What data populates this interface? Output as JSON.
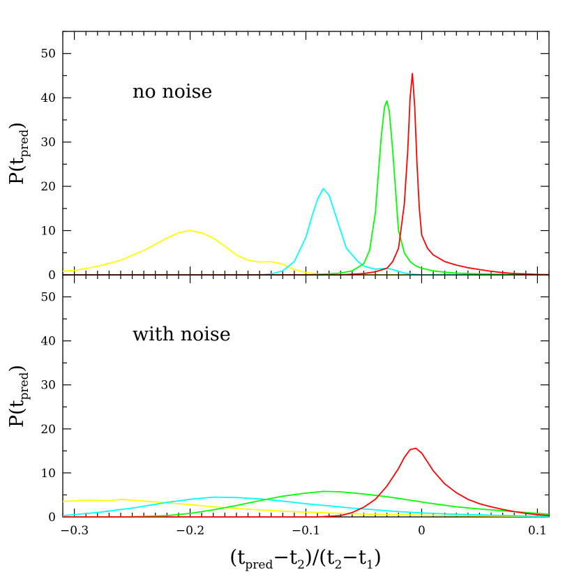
{
  "chart_data": [
    {
      "type": "line",
      "panel": "top",
      "annotation": "no noise",
      "ylabel": "P(t_pred)",
      "xlim": [
        -0.31,
        0.11
      ],
      "ylim": [
        0,
        55
      ],
      "xticks": [
        -0.3,
        -0.2,
        -0.1,
        0,
        0.1
      ],
      "yticks": [
        0,
        10,
        20,
        30,
        40,
        50
      ],
      "grid": false,
      "series": [
        {
          "color": "#ffff00",
          "x": [
            -0.31,
            -0.3,
            -0.28,
            -0.26,
            -0.24,
            -0.22,
            -0.21,
            -0.2,
            -0.19,
            -0.18,
            -0.17,
            -0.16,
            -0.15,
            -0.14,
            -0.13,
            -0.12,
            -0.11,
            -0.1,
            -0.09,
            -0.07,
            0.11
          ],
          "y": [
            0.8,
            1,
            1.9,
            3.3,
            5.5,
            8.3,
            9.5,
            10,
            9.5,
            8.3,
            6.5,
            4.5,
            3.3,
            2.9,
            3,
            2.4,
            1.2,
            0.5,
            0.2,
            0,
            0
          ]
        },
        {
          "color": "#00ffff",
          "x": [
            -0.31,
            -0.14,
            -0.13,
            -0.12,
            -0.11,
            -0.1,
            -0.095,
            -0.09,
            -0.085,
            -0.08,
            -0.075,
            -0.07,
            -0.065,
            -0.06,
            -0.055,
            -0.05,
            -0.045,
            -0.04,
            -0.035,
            -0.03,
            -0.025,
            -0.02,
            -0.015,
            -0.01,
            0,
            0.11
          ],
          "y": [
            0,
            0,
            0.2,
            0.9,
            3,
            8.5,
            13,
            17,
            19.5,
            18,
            14,
            10,
            6,
            4.5,
            3,
            2,
            1.6,
            1.3,
            1.4,
            1.5,
            1.2,
            0.8,
            0.4,
            0.2,
            0,
            0
          ]
        },
        {
          "color": "#00ff00",
          "x": [
            -0.31,
            -0.1,
            -0.08,
            -0.07,
            -0.06,
            -0.05,
            -0.045,
            -0.04,
            -0.035,
            -0.032,
            -0.03,
            -0.028,
            -0.025,
            -0.02,
            -0.015,
            -0.01,
            -0.005,
            0,
            0.01,
            0.02,
            0.03,
            0.05,
            0.07,
            0.09,
            0.11
          ],
          "y": [
            0,
            0,
            0.2,
            0.4,
            0.9,
            2.5,
            5.5,
            14,
            31,
            38,
            39.3,
            37,
            28,
            10,
            5,
            3,
            2,
            1.5,
            0.9,
            0.6,
            0.4,
            0.2,
            0.1,
            0,
            0
          ]
        },
        {
          "color": "#ff0000",
          "x": [
            -0.31,
            -0.07,
            -0.05,
            -0.04,
            -0.03,
            -0.025,
            -0.02,
            -0.015,
            -0.012,
            -0.01,
            -0.008,
            -0.006,
            -0.004,
            -0.002,
            0,
            0.005,
            0.01,
            0.02,
            0.03,
            0.04,
            0.05,
            0.06,
            0.07,
            0.08,
            0.09,
            0.1,
            0.11
          ],
          "y": [
            0,
            0,
            0.3,
            0.7,
            1.5,
            3,
            6,
            16,
            28,
            40,
            45.5,
            38,
            25,
            15,
            9,
            6,
            4.5,
            3,
            2.2,
            1.6,
            1.2,
            0.8,
            0.5,
            0.3,
            0.2,
            0.1,
            0.05
          ]
        }
      ]
    },
    {
      "type": "line",
      "panel": "bottom",
      "annotation": "with noise",
      "xlabel": "(t_pred−t_2)/(t_2−t_1)",
      "ylabel": "P(t_pred)",
      "xlim": [
        -0.31,
        0.11
      ],
      "ylim": [
        0,
        55
      ],
      "xticks": [
        -0.3,
        -0.2,
        -0.1,
        0,
        0.1
      ],
      "xticklabels": [
        "−0.3",
        "−0.2",
        "−0.1",
        "0",
        "0.1"
      ],
      "yticks": [
        0,
        10,
        20,
        30,
        40,
        50
      ],
      "grid": false,
      "series": [
        {
          "color": "#ffff00",
          "x": [
            -0.31,
            -0.29,
            -0.27,
            -0.26,
            -0.24,
            -0.22,
            -0.2,
            -0.18,
            -0.16,
            -0.14,
            -0.12,
            -0.1,
            -0.08,
            -0.06,
            -0.04,
            -0.02,
            0,
            0.03,
            0.06,
            0.11
          ],
          "y": [
            3.5,
            3.8,
            3.7,
            4,
            3.6,
            3.2,
            2.8,
            2.3,
            1.9,
            1.6,
            1.3,
            1.1,
            0.9,
            0.7,
            0.6,
            0.5,
            0.4,
            0.3,
            0.2,
            0.1
          ]
        },
        {
          "color": "#00ffff",
          "x": [
            -0.31,
            -0.28,
            -0.25,
            -0.22,
            -0.2,
            -0.18,
            -0.16,
            -0.14,
            -0.12,
            -0.1,
            -0.08,
            -0.06,
            -0.04,
            -0.02,
            0,
            0.03,
            0.06,
            0.09,
            0.11
          ],
          "y": [
            0.3,
            1,
            2,
            3.3,
            4,
            4.5,
            4.4,
            4.1,
            3.6,
            3,
            2.5,
            2,
            1.6,
            1.2,
            0.9,
            0.6,
            0.4,
            0.2,
            0.1
          ]
        },
        {
          "color": "#00ff00",
          "x": [
            -0.31,
            -0.26,
            -0.24,
            -0.22,
            -0.2,
            -0.18,
            -0.16,
            -0.14,
            -0.12,
            -0.1,
            -0.085,
            -0.07,
            -0.05,
            -0.03,
            -0.01,
            0.01,
            0.03,
            0.05,
            0.07,
            0.09,
            0.11
          ],
          "y": [
            0,
            0,
            0.1,
            0.3,
            0.8,
            1.6,
            2.6,
            3.7,
            4.7,
            5.4,
            5.8,
            5.7,
            5.2,
            4.6,
            3.8,
            3,
            2.3,
            1.8,
            1.4,
            1,
            0.6
          ]
        },
        {
          "color": "#ff0000",
          "x": [
            -0.31,
            -0.09,
            -0.07,
            -0.06,
            -0.05,
            -0.04,
            -0.03,
            -0.02,
            -0.015,
            -0.01,
            -0.005,
            0,
            0.005,
            0.01,
            0.02,
            0.03,
            0.04,
            0.05,
            0.06,
            0.07,
            0.08,
            0.09,
            0.1,
            0.11
          ],
          "y": [
            0,
            0,
            0.3,
            1,
            2.2,
            4,
            7,
            11,
            13.5,
            15.3,
            15.6,
            14.5,
            12.5,
            10.5,
            7.5,
            5.5,
            4,
            3,
            2.3,
            1.7,
            1.2,
            0.8,
            0.5,
            0.3
          ]
        }
      ]
    }
  ]
}
